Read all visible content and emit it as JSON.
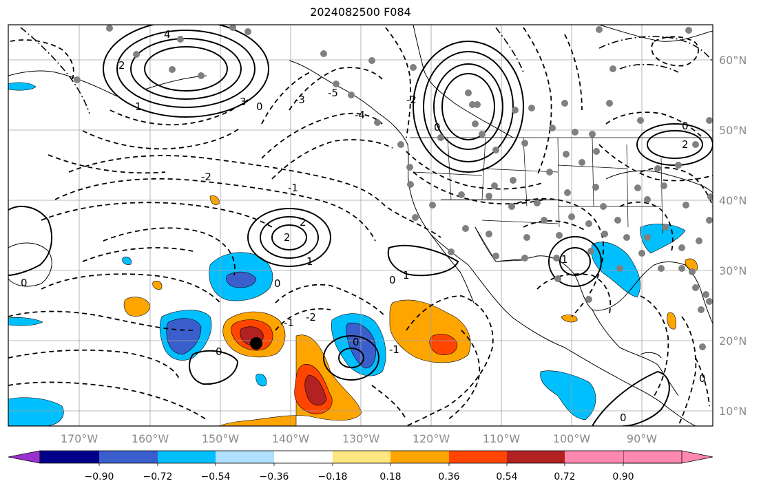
{
  "title": "2024082500 F084",
  "lon_labels": [
    "170°W",
    "160°W",
    "150°W",
    "140°W",
    "130°W",
    "120°W",
    "110°W",
    "100°W",
    "90°W"
  ],
  "lat_labels": [
    "60°N",
    "50°N",
    "40°N",
    "30°N",
    "20°N",
    "10°N"
  ],
  "colorbar": {
    "ticks": [
      "−0.90",
      "−0.72",
      "−0.54",
      "−0.36",
      "−0.18",
      "0.18",
      "0.36",
      "0.54",
      "0.72",
      "0.90"
    ],
    "colors": [
      "#9b30d0",
      "#00008b",
      "#3a5fcd",
      "#00bfff",
      "#b0e0ff",
      "#ffffff",
      "#ffe680",
      "#ffa500",
      "#ff4500",
      "#b22222",
      "#ff88b0"
    ]
  },
  "contour_labels": [
    "4",
    "3",
    "2",
    "1",
    "0",
    "-1",
    "-2",
    "-3",
    "-4",
    "-5",
    "2",
    "1",
    "0",
    "0",
    "-2",
    "-1",
    "0",
    "2",
    "1",
    "0",
    "-1",
    "-2",
    "0",
    "0",
    "1",
    "0",
    "2",
    "0",
    "0"
  ]
}
